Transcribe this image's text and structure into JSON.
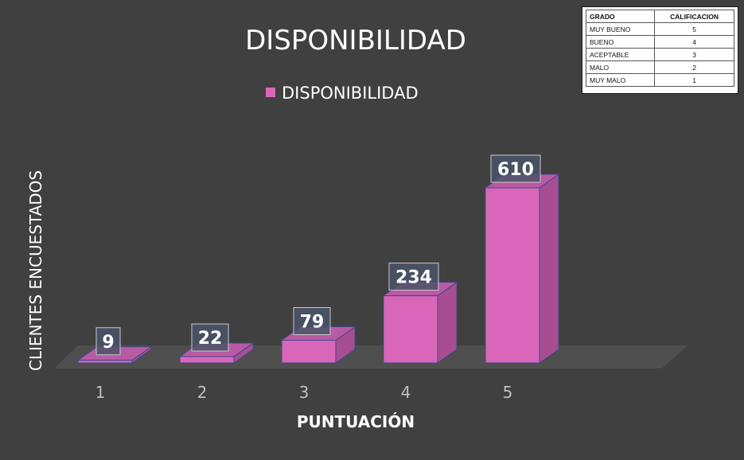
{
  "grade_table": {
    "headers": [
      "GRADO",
      "CALIFICACION"
    ],
    "rows": [
      {
        "grade": "MUY BUENO",
        "score": "5"
      },
      {
        "grade": "BUENO",
        "score": "4"
      },
      {
        "grade": "ACEPTABLE",
        "score": "3"
      },
      {
        "grade": "MALO",
        "score": "2"
      },
      {
        "grade": "MUY MALO",
        "score": "1"
      }
    ]
  },
  "colors": {
    "background": "#404040",
    "bar_front": "#d966b9",
    "bar_side": "#a94d93",
    "bar_top": "#b85ba4",
    "bar_outline": "#3c4a8c",
    "floor": "#4f4f4f",
    "label_box": "#4a5568",
    "text": "#ffffff",
    "axis_text": "#bfbfbf"
  },
  "chart_data": {
    "type": "bar",
    "title": "DISPONIBILIDAD",
    "xlabel": "PUNTUACIÓN",
    "ylabel": "CLIENTES ENCUESTADOS",
    "categories": [
      "1",
      "2",
      "3",
      "4",
      "5"
    ],
    "series": [
      {
        "name": "DISPONIBILIDAD",
        "values": [
          9,
          22,
          79,
          234,
          610
        ]
      }
    ],
    "ylim": [
      0,
      610
    ],
    "grid": false,
    "legend": "top-center",
    "style": "3d-column"
  }
}
